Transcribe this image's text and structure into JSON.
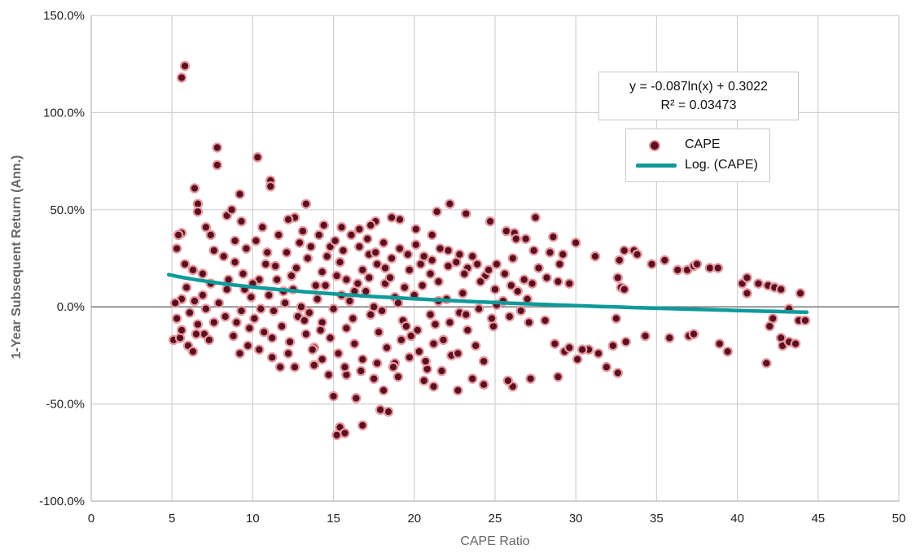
{
  "chart_data": {
    "type": "scatter",
    "xlabel": "CAPE Ratio",
    "ylabel": "1-Year Subsequent Return (Ann.)",
    "xlim": [
      0,
      50
    ],
    "ylim": [
      -100,
      150
    ],
    "x_ticks": [
      "0",
      "5",
      "10",
      "15",
      "20",
      "25",
      "30",
      "35",
      "40",
      "45",
      "50"
    ],
    "y_ticks": [
      "-100.0%",
      "-50.0%",
      "0.0%",
      "50.0%",
      "100.0%",
      "150.0%"
    ],
    "grid": true,
    "legend_placement": "top-right",
    "equation": "y = -0.087ln(x) + 0.3022",
    "r_squared": "R² = 0.03473",
    "series": [
      {
        "name": "CAPE",
        "kind": "scatter",
        "color": "#5a1020",
        "edge_color": "#e89aa0",
        "points": [
          [
            5.6,
            118
          ],
          [
            5.8,
            124
          ],
          [
            7.8,
            82
          ],
          [
            7.8,
            73
          ],
          [
            10.3,
            77
          ],
          [
            11.1,
            65
          ],
          [
            11.1,
            62
          ],
          [
            6.4,
            61
          ],
          [
            9.2,
            58
          ],
          [
            6.6,
            53
          ],
          [
            6.6,
            49
          ],
          [
            13.3,
            53
          ],
          [
            22.2,
            53
          ],
          [
            21.4,
            49
          ],
          [
            23.2,
            48
          ],
          [
            27.5,
            46
          ],
          [
            24.7,
            44
          ],
          [
            19.1,
            45
          ],
          [
            18.6,
            46
          ],
          [
            17.6,
            44
          ],
          [
            17.3,
            42
          ],
          [
            8.4,
            47
          ],
          [
            8.7,
            50
          ],
          [
            9.3,
            44
          ],
          [
            5.6,
            38
          ],
          [
            5.4,
            37
          ],
          [
            5.3,
            30
          ],
          [
            7.1,
            41
          ],
          [
            7.4,
            37
          ],
          [
            10.6,
            41
          ],
          [
            12.6,
            46
          ],
          [
            12.2,
            45
          ],
          [
            14.4,
            42
          ],
          [
            15.5,
            41
          ],
          [
            16.6,
            40
          ],
          [
            20.1,
            40
          ],
          [
            21.1,
            37
          ],
          [
            25.7,
            39
          ],
          [
            26.2,
            38
          ],
          [
            26.3,
            35
          ],
          [
            26.9,
            35
          ],
          [
            27.4,
            29
          ],
          [
            28.6,
            36
          ],
          [
            29.2,
            27
          ],
          [
            30,
            33
          ],
          [
            29,
            22
          ],
          [
            28.4,
            28
          ],
          [
            31.2,
            26
          ],
          [
            32.7,
            24
          ],
          [
            33.0,
            29
          ],
          [
            33.6,
            29
          ],
          [
            33.8,
            27
          ],
          [
            34.7,
            22
          ],
          [
            35.5,
            24
          ],
          [
            36.3,
            19
          ],
          [
            36.9,
            19
          ],
          [
            37.3,
            21
          ],
          [
            37.5,
            22
          ],
          [
            38.3,
            20
          ],
          [
            38.8,
            20
          ],
          [
            40.3,
            12
          ],
          [
            40.6,
            15
          ],
          [
            41.3,
            12
          ],
          [
            41.9,
            11
          ],
          [
            42.3,
            10
          ],
          [
            42.7,
            9
          ],
          [
            43.9,
            7
          ],
          [
            40.6,
            7
          ],
          [
            32.6,
            15
          ],
          [
            32.8,
            10
          ],
          [
            33.0,
            9
          ],
          [
            32.5,
            -6
          ],
          [
            32.3,
            -20
          ],
          [
            30.8,
            -22
          ],
          [
            31.4,
            -24
          ],
          [
            31.9,
            -31
          ],
          [
            32.6,
            -34
          ],
          [
            33.1,
            -18
          ],
          [
            34.3,
            -15
          ],
          [
            35.8,
            -16
          ],
          [
            37,
            -15
          ],
          [
            37.3,
            -14
          ],
          [
            38.9,
            -19
          ],
          [
            39.4,
            -23
          ],
          [
            42.0,
            -10
          ],
          [
            42.2,
            -6
          ],
          [
            42.7,
            -16
          ],
          [
            42.8,
            -20
          ],
          [
            43.2,
            -18
          ],
          [
            43.6,
            -19
          ],
          [
            41.8,
            -29
          ],
          [
            43.8,
            -7
          ],
          [
            44.2,
            -7
          ],
          [
            43.2,
            -1
          ],
          [
            28.9,
            -36
          ],
          [
            27.2,
            -37
          ],
          [
            26.1,
            -41
          ],
          [
            25.8,
            -38
          ],
          [
            23.6,
            -37
          ],
          [
            22.7,
            -43
          ],
          [
            21.2,
            -41
          ],
          [
            19.0,
            -36
          ],
          [
            18.4,
            -54
          ],
          [
            17.9,
            -53
          ],
          [
            16.8,
            -61
          ],
          [
            16.4,
            -47
          ],
          [
            15.4,
            -62
          ],
          [
            15.7,
            -65
          ],
          [
            15.2,
            -66
          ],
          [
            15.0,
            -46
          ],
          [
            15.8,
            -35
          ],
          [
            17.5,
            -37
          ],
          [
            18.1,
            -43
          ],
          [
            20.6,
            -38
          ],
          [
            24.3,
            -40
          ],
          [
            6.0,
            -20
          ],
          [
            6.3,
            -23
          ],
          [
            5.1,
            -17
          ],
          [
            5.5,
            -16
          ],
          [
            7.0,
            -14
          ],
          [
            6.5,
            -14
          ],
          [
            7.3,
            -17
          ],
          [
            9.2,
            -24
          ],
          [
            9.7,
            -20
          ],
          [
            10.4,
            -22
          ],
          [
            11.2,
            -26
          ],
          [
            11.7,
            -31
          ],
          [
            12.6,
            -31
          ],
          [
            13.8,
            -30
          ],
          [
            14.3,
            -27
          ],
          [
            5.3,
            -6
          ],
          [
            5.6,
            4
          ],
          [
            5.8,
            22
          ],
          [
            6.3,
            19
          ],
          [
            6.9,
            17
          ],
          [
            7.6,
            29
          ],
          [
            8.2,
            26
          ],
          [
            8.9,
            34
          ],
          [
            9.6,
            30
          ],
          [
            27.3,
            12
          ],
          [
            28.1,
            -7
          ],
          [
            28.7,
            -19
          ],
          [
            29.3,
            -23
          ],
          [
            29.6,
            -21
          ],
          [
            30.1,
            -27
          ],
          [
            30.4,
            -22
          ],
          [
            29.6,
            12
          ],
          [
            28.9,
            13
          ],
          [
            28.2,
            15
          ],
          [
            27.7,
            20
          ],
          [
            26.8,
            14
          ],
          [
            26.4,
            8
          ],
          [
            25.5,
            3
          ],
          [
            25.9,
            -5
          ],
          [
            26.6,
            -2
          ],
          [
            27.1,
            -8
          ],
          [
            24.9,
            -10
          ],
          [
            25.1,
            1
          ],
          [
            24.4,
            16
          ],
          [
            23.9,
            22
          ],
          [
            23.3,
            20
          ],
          [
            22.8,
            27
          ],
          [
            22.1,
            29
          ],
          [
            21.5,
            13
          ],
          [
            21.0,
            17
          ],
          [
            20.4,
            22
          ],
          [
            19.7,
            19
          ],
          [
            19.4,
            10
          ],
          [
            18.8,
            5
          ],
          [
            18.2,
            12
          ],
          [
            17.7,
            22
          ],
          [
            17.2,
            27
          ],
          [
            16.8,
            19
          ],
          [
            16.3,
            8
          ],
          [
            15.8,
            14
          ],
          [
            15.4,
            23
          ],
          [
            14.8,
            31
          ],
          [
            14.3,
            18
          ],
          [
            13.9,
            11
          ],
          [
            13.4,
            25
          ],
          [
            12.9,
            33
          ],
          [
            12.4,
            16
          ],
          [
            11.9,
            8
          ],
          [
            11.4,
            21
          ],
          [
            10.9,
            28
          ],
          [
            10.4,
            14
          ],
          [
            9.9,
            5
          ],
          [
            9.4,
            17
          ],
          [
            8.9,
            23
          ],
          [
            8.4,
            9
          ],
          [
            7.9,
            2
          ],
          [
            7.4,
            12
          ],
          [
            6.9,
            6
          ],
          [
            6.4,
            3
          ],
          [
            5.9,
            10
          ],
          [
            10.1,
            -6
          ],
          [
            10.7,
            -13
          ],
          [
            11.3,
            -2
          ],
          [
            11.8,
            -10
          ],
          [
            12.3,
            -18
          ],
          [
            12.8,
            -5
          ],
          [
            13.3,
            -14
          ],
          [
            13.8,
            -21
          ],
          [
            14.3,
            -8
          ],
          [
            14.8,
            -16
          ],
          [
            15.3,
            -24
          ],
          [
            15.8,
            -11
          ],
          [
            16.3,
            -19
          ],
          [
            16.8,
            -27
          ],
          [
            17.3,
            -4
          ],
          [
            17.8,
            -13
          ],
          [
            18.3,
            -21
          ],
          [
            18.8,
            -29
          ],
          [
            19.3,
            -7
          ],
          [
            19.8,
            -15
          ],
          [
            20.3,
            -23
          ],
          [
            20.8,
            -32
          ],
          [
            21.3,
            -9
          ],
          [
            21.8,
            -17
          ],
          [
            22.3,
            -25
          ],
          [
            22.8,
            -3
          ],
          [
            23.3,
            -12
          ],
          [
            23.8,
            -20
          ],
          [
            24.3,
            -28
          ],
          [
            24.8,
            -6
          ],
          [
            8.3,
            -5
          ],
          [
            8.8,
            -15
          ],
          [
            9.3,
            -2
          ],
          [
            9.8,
            -11
          ],
          [
            7.6,
            -8
          ],
          [
            7.1,
            -1
          ],
          [
            6.6,
            -9
          ],
          [
            6.1,
            -3
          ],
          [
            5.6,
            -12
          ],
          [
            5.2,
            2
          ],
          [
            10.2,
            34
          ],
          [
            10.8,
            22
          ],
          [
            11.6,
            37
          ],
          [
            12.1,
            28
          ],
          [
            12.7,
            20
          ],
          [
            13.1,
            39
          ],
          [
            13.6,
            31
          ],
          [
            14.1,
            37
          ],
          [
            14.6,
            26
          ],
          [
            15.1,
            34
          ],
          [
            15.6,
            29
          ],
          [
            16.1,
            37
          ],
          [
            16.6,
            31
          ],
          [
            17.1,
            35
          ],
          [
            17.6,
            28
          ],
          [
            18.1,
            33
          ],
          [
            18.6,
            25
          ],
          [
            19.1,
            30
          ],
          [
            19.6,
            27
          ],
          [
            20.1,
            32
          ],
          [
            20.6,
            26
          ],
          [
            21.1,
            24
          ],
          [
            21.6,
            30
          ],
          [
            22.1,
            21
          ],
          [
            22.6,
            23
          ],
          [
            23.1,
            17
          ],
          [
            23.6,
            26
          ],
          [
            24.1,
            13
          ],
          [
            24.6,
            19
          ],
          [
            25.1,
            22
          ],
          [
            25.6,
            17
          ],
          [
            26.1,
            25
          ],
          [
            11.0,
            6
          ],
          [
            12.0,
            2
          ],
          [
            13.0,
            0
          ],
          [
            14.0,
            4
          ],
          [
            15.0,
            -1
          ],
          [
            16.0,
            3
          ],
          [
            17.0,
            8
          ],
          [
            18.0,
            -2
          ],
          [
            19.0,
            2
          ],
          [
            20.0,
            6
          ],
          [
            21.0,
            -4
          ],
          [
            22.0,
            4
          ],
          [
            23.0,
            7
          ],
          [
            24.0,
            -1
          ],
          [
            25.0,
            9
          ],
          [
            26.0,
            11
          ],
          [
            27.0,
            4
          ],
          [
            14.5,
            11
          ],
          [
            15.5,
            6
          ],
          [
            16.5,
            12
          ],
          [
            17.5,
            0
          ],
          [
            18.5,
            15
          ],
          [
            19.5,
            -10
          ],
          [
            20.5,
            11
          ],
          [
            21.5,
            3
          ],
          [
            13.5,
            -3
          ],
          [
            12.5,
            9
          ],
          [
            11.5,
            14
          ],
          [
            10.5,
            -1
          ],
          [
            9.5,
            9
          ],
          [
            8.5,
            14
          ],
          [
            9.0,
            -8
          ],
          [
            10.0,
            12
          ],
          [
            15.2,
            16
          ],
          [
            16.2,
            -6
          ],
          [
            17.2,
            15
          ],
          [
            18.2,
            20
          ],
          [
            19.2,
            -17
          ],
          [
            20.2,
            -12
          ],
          [
            21.2,
            -19
          ],
          [
            22.2,
            -8
          ],
          [
            23.2,
            -4
          ],
          [
            14.2,
            -12
          ],
          [
            13.2,
            -7
          ],
          [
            12.2,
            -24
          ],
          [
            11.2,
            -16
          ],
          [
            16.7,
            -33
          ],
          [
            17.7,
            -29
          ],
          [
            18.7,
            -31
          ],
          [
            19.7,
            -26
          ],
          [
            20.7,
            -28
          ],
          [
            21.7,
            -33
          ],
          [
            22.7,
            -24
          ],
          [
            14.7,
            -35
          ],
          [
            15.7,
            -31
          ],
          [
            13.7,
            -22
          ]
        ]
      },
      {
        "name": "Log. (CAPE)",
        "kind": "trendline",
        "color": "#0f9a9a",
        "a": -0.087,
        "b": 0.3022,
        "x_range": [
          4.8,
          44.3
        ]
      }
    ]
  }
}
